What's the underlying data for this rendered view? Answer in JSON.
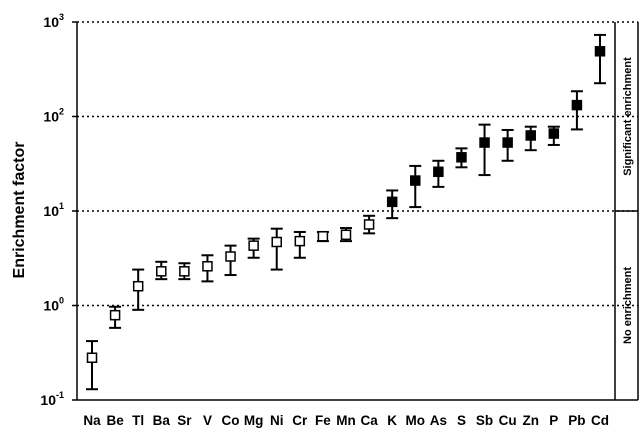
{
  "chart_data": {
    "type": "scatter",
    "title": "",
    "xlabel": "",
    "ylabel": "Enrichment factor",
    "yscale": "log",
    "ylim": [
      0.1,
      1000
    ],
    "y_ticks": [
      {
        "base": "10",
        "exp": "-1"
      },
      {
        "base": "10",
        "exp": "0"
      },
      {
        "base": "10",
        "exp": "1"
      },
      {
        "base": "10",
        "exp": "2"
      },
      {
        "base": "10",
        "exp": "3"
      }
    ],
    "reference_lines": [
      1,
      10,
      100,
      1000
    ],
    "categories": [
      "Na",
      "Be",
      "Tl",
      "Ba",
      "Sr",
      "V",
      "Co",
      "Mg",
      "Ni",
      "Cr",
      "Fe",
      "Mn",
      "Ca",
      "K",
      "Mo",
      "As",
      "S",
      "Sb",
      "Cu",
      "Zn",
      "P",
      "Pb",
      "Cd"
    ],
    "points": [
      {
        "element": "Na",
        "value": 0.28,
        "low": 0.13,
        "high": 0.42,
        "marker": "open-square"
      },
      {
        "element": "Be",
        "value": 0.79,
        "low": 0.58,
        "high": 0.97,
        "marker": "open-square"
      },
      {
        "element": "Tl",
        "value": 1.6,
        "low": 0.9,
        "high": 2.4,
        "marker": "open-square"
      },
      {
        "element": "Ba",
        "value": 2.3,
        "low": 1.9,
        "high": 2.9,
        "marker": "open-square"
      },
      {
        "element": "Sr",
        "value": 2.3,
        "low": 1.9,
        "high": 2.8,
        "marker": "open-square"
      },
      {
        "element": "V",
        "value": 2.6,
        "low": 1.8,
        "high": 3.4,
        "marker": "open-square"
      },
      {
        "element": "Co",
        "value": 3.3,
        "low": 2.1,
        "high": 4.3,
        "marker": "open-square"
      },
      {
        "element": "Mg",
        "value": 4.3,
        "low": 3.2,
        "high": 5.1,
        "marker": "open-square"
      },
      {
        "element": "Ni",
        "value": 4.7,
        "low": 2.4,
        "high": 6.5,
        "marker": "open-square"
      },
      {
        "element": "Cr",
        "value": 4.8,
        "low": 3.2,
        "high": 6.0,
        "marker": "open-square"
      },
      {
        "element": "Fe",
        "value": 5.4,
        "low": 4.8,
        "high": 6.0,
        "marker": "open-square"
      },
      {
        "element": "Mn",
        "value": 5.6,
        "low": 4.8,
        "high": 6.6,
        "marker": "open-square"
      },
      {
        "element": "Ca",
        "value": 7.2,
        "low": 5.8,
        "high": 8.9,
        "marker": "open-square"
      },
      {
        "element": "K",
        "value": 12.5,
        "low": 8.4,
        "high": 16.5,
        "marker": "filled-square"
      },
      {
        "element": "Mo",
        "value": 21,
        "low": 11,
        "high": 30,
        "marker": "filled-square"
      },
      {
        "element": "As",
        "value": 26,
        "low": 18,
        "high": 34,
        "marker": "filled-square"
      },
      {
        "element": "S",
        "value": 37,
        "low": 29,
        "high": 46,
        "marker": "filled-square"
      },
      {
        "element": "Sb",
        "value": 53,
        "low": 24,
        "high": 82,
        "marker": "filled-square"
      },
      {
        "element": "Cu",
        "value": 53,
        "low": 34,
        "high": 72,
        "marker": "filled-square"
      },
      {
        "element": "Zn",
        "value": 63,
        "low": 44,
        "high": 78,
        "marker": "filled-square"
      },
      {
        "element": "P",
        "value": 66,
        "low": 50,
        "high": 78,
        "marker": "filled-square"
      },
      {
        "element": "Pb",
        "value": 132,
        "low": 73,
        "high": 185,
        "marker": "filled-square"
      },
      {
        "element": "Cd",
        "value": 490,
        "low": 225,
        "high": 730,
        "marker": "filled-square"
      }
    ],
    "regions": [
      {
        "label": "Significant enrichment",
        "from": 10,
        "to": 1000
      },
      {
        "label": "No enrichment",
        "from": 0.1,
        "to": 10
      }
    ],
    "grid": false,
    "legend": "none"
  }
}
